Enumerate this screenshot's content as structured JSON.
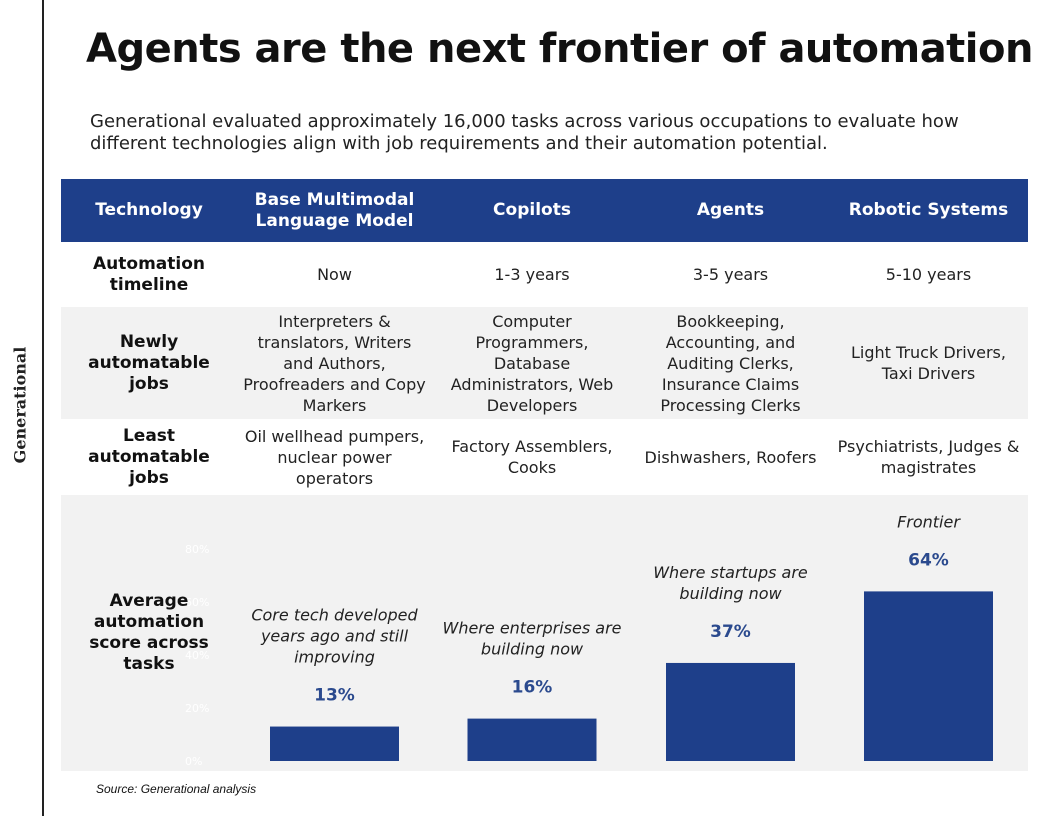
{
  "brand": "Generational",
  "title": "Agents are the next frontier of automation",
  "subtitle": "Generational evaluated approximately 16,000 tasks across various occupations to evaluate how different technologies align with job requirements and their automation potential.",
  "table": {
    "headers": [
      "Technology",
      "Base Multimodal Language Model",
      "Copilots",
      "Agents",
      "Robotic Systems"
    ],
    "rows": [
      {
        "label": "Automation timeline",
        "cells": [
          "Now",
          "1-3 years",
          "3-5 years",
          "5-10 years"
        ]
      },
      {
        "label": "Newly automatable jobs",
        "cells": [
          "Interpreters & translators, Writers and Authors, Proofreaders and Copy Markers",
          "Computer Programmers, Database Administrators, Web Developers",
          "Bookkeeping, Accounting, and Auditing Clerks, Insurance Claims Processing Clerks",
          "Light Truck Drivers, Taxi Drivers"
        ]
      },
      {
        "label": "Least automatable jobs",
        "cells": [
          "Oil wellhead pumpers, nuclear power operators",
          "Factory Assemblers, Cooks",
          "Dishwashers, Roofers",
          "Psychiatrists, Judges & magistrates"
        ]
      }
    ],
    "score_label": "Average automation score across tasks"
  },
  "chart_data": {
    "type": "bar",
    "categories": [
      "Base Multimodal Language Model",
      "Copilots",
      "Agents",
      "Robotic Systems"
    ],
    "values": [
      13,
      16,
      37,
      64
    ],
    "value_labels": [
      "13%",
      "16%",
      "37%",
      "64%"
    ],
    "annotations": [
      "Core tech developed years ago and still improving",
      "Where enterprises are building now",
      "Where  startups are building now",
      "Frontier"
    ],
    "y_ticks": [
      "0%",
      "20%",
      "40%",
      "60%",
      "80%"
    ],
    "ylim": [
      0,
      80
    ],
    "bar_color": "#1e3f8a",
    "label_color": "#2b4a8e",
    "tick_color": "#ffffff",
    "grid": false
  },
  "source": "Source: Generational analysis"
}
